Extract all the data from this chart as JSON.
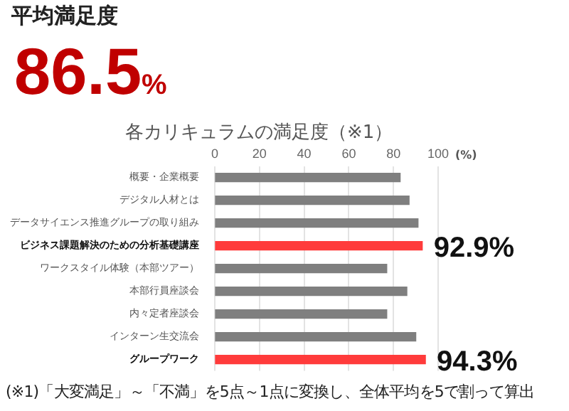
{
  "chart_data": {
    "type": "bar",
    "orientation": "horizontal",
    "title": "平均満足度",
    "subtitle": "86.5%",
    "annotations": [
      "各カリキュラムの満足度（※1）",
      "(※1)「大変満足」～「不満」を5点～1点に変換し、全体平均を5で割って算出"
    ],
    "xlabel": "(%)",
    "categories": [
      "概要・企業概要",
      "デジタル人材とは",
      "データサイエンス推進グループの取り組み",
      "ビジネス課題解決のための分析基礎講座",
      "ワークスタイル体験（本部ツアー）",
      "本部行員座談会",
      "内々定者座談会",
      "インターン生交流会",
      "グループワーク"
    ],
    "values": [
      83,
      87,
      91,
      92.9,
      77,
      86,
      77,
      90,
      94.3
    ],
    "colors": [
      "#7f7f7f",
      "#7f7f7f",
      "#7f7f7f",
      "#ff3b3b",
      "#7f7f7f",
      "#7f7f7f",
      "#7f7f7f",
      "#7f7f7f",
      "#ff3b3b"
    ],
    "value_labels": [
      null,
      null,
      null,
      "92.9%",
      null,
      null,
      null,
      null,
      "94.3%"
    ],
    "xlim": [
      0,
      100
    ],
    "xticks": [
      0,
      20,
      40,
      60,
      80,
      100
    ],
    "grid": "x",
    "legend": false
  }
}
